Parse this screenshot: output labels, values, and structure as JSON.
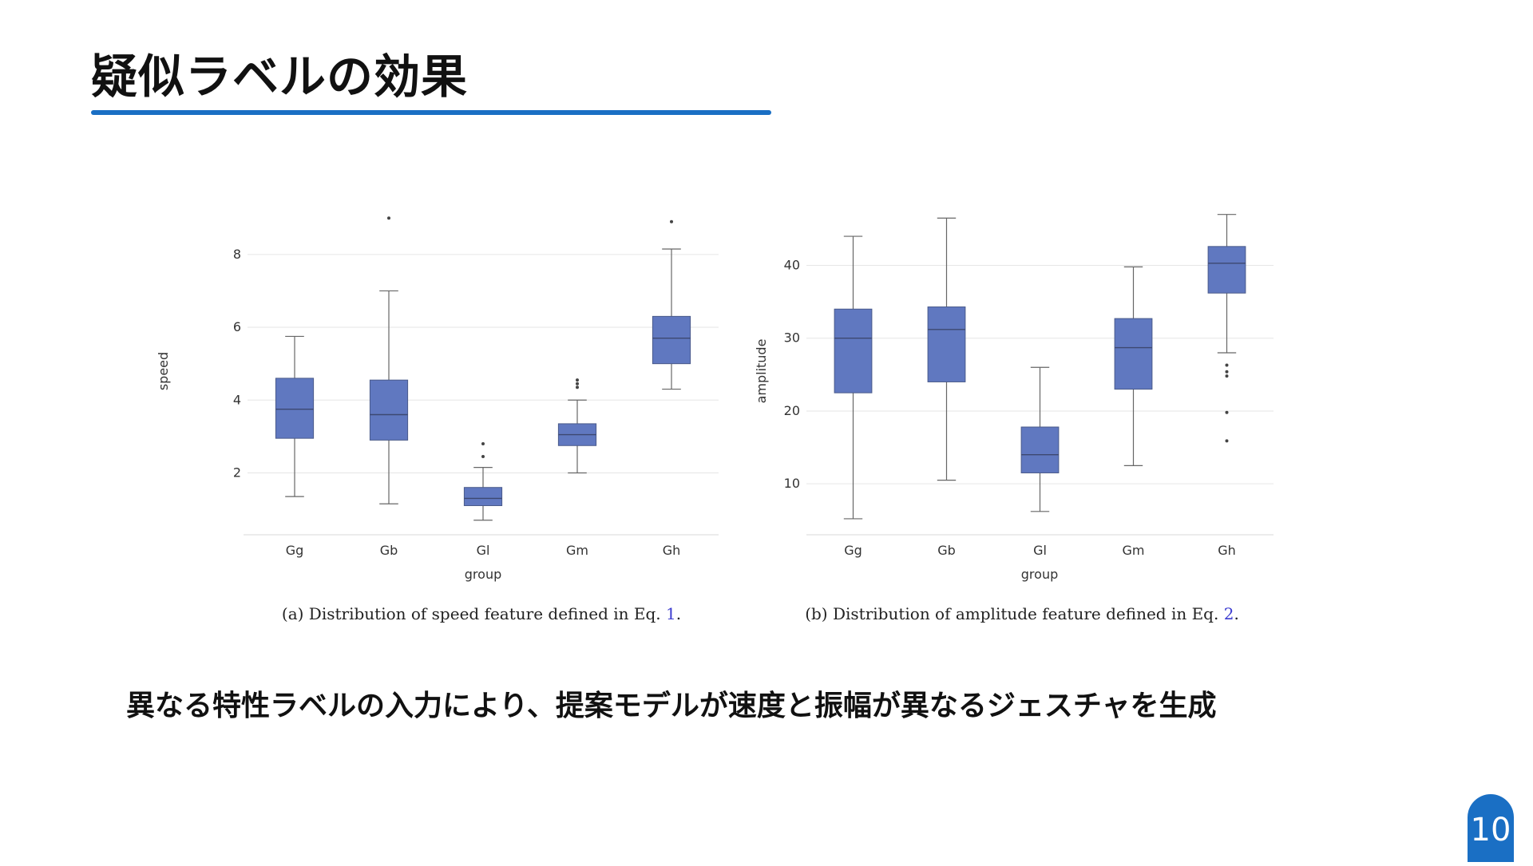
{
  "slide": {
    "title": "疑似ラベルの効果",
    "summary": "異なる特性ラベルの入力により、提案モデルが速度と振幅が異なるジェスチャを生成",
    "page_number": "10",
    "accent_color": "#1a6fc4",
    "box_color": "#6078c0"
  },
  "chart_data": [
    {
      "type": "box",
      "id": "a",
      "title": "",
      "xlabel": "group",
      "ylabel": "speed",
      "categories": [
        "Gg",
        "Gb",
        "Gl",
        "Gm",
        "Gh"
      ],
      "ylim": [
        0.3,
        9.4
      ],
      "yticks": [
        2,
        4,
        6,
        8
      ],
      "grid": true,
      "boxes": [
        {
          "whisker_low": 1.35,
          "q1": 2.95,
          "median": 3.75,
          "q3": 4.6,
          "whisker_high": 5.75,
          "outliers": []
        },
        {
          "whisker_low": 1.15,
          "q1": 2.9,
          "median": 3.6,
          "q3": 4.55,
          "whisker_high": 7.0,
          "outliers": [
            9.0
          ]
        },
        {
          "whisker_low": 0.7,
          "q1": 1.1,
          "median": 1.3,
          "q3": 1.6,
          "whisker_high": 2.15,
          "outliers": [
            2.45,
            2.8
          ]
        },
        {
          "whisker_low": 2.0,
          "q1": 2.75,
          "median": 3.05,
          "q3": 3.35,
          "whisker_high": 4.0,
          "outliers": [
            4.35,
            4.45,
            4.55
          ]
        },
        {
          "whisker_low": 4.3,
          "q1": 5.0,
          "median": 5.7,
          "q3": 6.3,
          "whisker_high": 8.15,
          "outliers": [
            8.9
          ]
        }
      ],
      "caption": {
        "text": "(a) Distribution of speed feature defined in Eq. ",
        "ref": "1",
        "end": "."
      }
    },
    {
      "type": "box",
      "id": "b",
      "title": "",
      "xlabel": "group",
      "ylabel": "amplitude",
      "categories": [
        "Gg",
        "Gb",
        "Gl",
        "Gm",
        "Gh"
      ],
      "ylim": [
        3.0,
        48.5
      ],
      "yticks": [
        10,
        20,
        30,
        40
      ],
      "grid": true,
      "boxes": [
        {
          "whisker_low": 5.2,
          "q1": 22.5,
          "median": 30.0,
          "q3": 34.0,
          "whisker_high": 44.0,
          "outliers": []
        },
        {
          "whisker_low": 10.5,
          "q1": 24.0,
          "median": 31.2,
          "q3": 34.3,
          "whisker_high": 46.5,
          "outliers": []
        },
        {
          "whisker_low": 6.2,
          "q1": 11.5,
          "median": 14.0,
          "q3": 17.8,
          "whisker_high": 26.0,
          "outliers": []
        },
        {
          "whisker_low": 12.5,
          "q1": 23.0,
          "median": 28.7,
          "q3": 32.7,
          "whisker_high": 39.8,
          "outliers": []
        },
        {
          "whisker_low": 28.0,
          "q1": 36.2,
          "median": 40.3,
          "q3": 42.6,
          "whisker_high": 47.0,
          "outliers": [
            15.9,
            19.8,
            24.8,
            25.4,
            26.3
          ]
        }
      ],
      "caption": {
        "text": "(b) Distribution of amplitude feature defined in Eq. ",
        "ref": "2",
        "end": "."
      }
    }
  ]
}
